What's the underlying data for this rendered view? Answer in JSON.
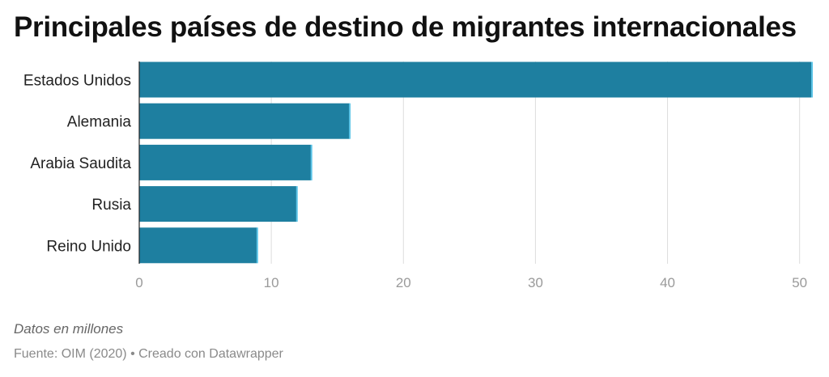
{
  "chart_data": {
    "type": "bar",
    "orientation": "horizontal",
    "title": "Principales países de destino de migrantes internacionales",
    "categories": [
      "Estados Unidos",
      "Alemania",
      "Arabia Saudita",
      "Rusia",
      "Reino Unido"
    ],
    "values": [
      51,
      16,
      13.1,
      12,
      9
    ],
    "xlim": [
      0,
      51
    ],
    "xticks": [
      0,
      10,
      20,
      30,
      40,
      50
    ],
    "xlabel": "",
    "ylabel": "",
    "grid": true,
    "bar_color": "#1e7fa0",
    "bar_edge_color": "#5bc3e6",
    "note": "Datos en millones",
    "source": "Fuente: OIM (2020) • Creado con Datawrapper"
  }
}
